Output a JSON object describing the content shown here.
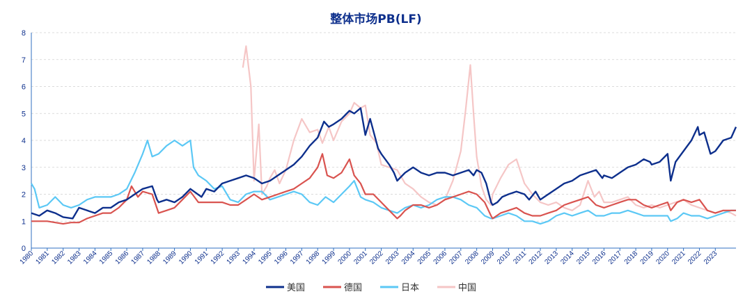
{
  "chart_data": {
    "type": "line",
    "title": "整体市场PB(LF)",
    "xlabel": "",
    "ylabel": "",
    "ylim": [
      0,
      8
    ],
    "yticks": [
      0,
      1,
      2,
      3,
      4,
      5,
      6,
      7,
      8
    ],
    "xlim": [
      1980,
      2024.3
    ],
    "xticks": [
      "1980",
      "1981",
      "1982",
      "1983",
      "1984",
      "1985",
      "1986",
      "1987",
      "1988",
      "1989",
      "1990",
      "1991",
      "1992",
      "1993",
      "1994",
      "1995",
      "1996",
      "1997",
      "1998",
      "1999",
      "2000",
      "2001",
      "2002",
      "2003",
      "2004",
      "2005",
      "2006",
      "2007",
      "2008",
      "2009",
      "2010",
      "2011",
      "2012",
      "2013",
      "2014",
      "2015",
      "2016",
      "2017",
      "2018",
      "2019",
      "2020",
      "2021",
      "2022",
      "2023"
    ],
    "grid": true,
    "legend_position": "bottom",
    "series": [
      {
        "name": "美国",
        "color": "#0d2f8c",
        "x": [
          1980,
          1980.5,
          1981,
          1981.5,
          1982,
          1982.6,
          1983,
          1983.5,
          1984,
          1984.5,
          1985,
          1985.5,
          1986,
          1986.5,
          1987,
          1987.6,
          1987.9,
          1988,
          1988.5,
          1989,
          1989.5,
          1990,
          1990.7,
          1991,
          1991.5,
          1992,
          1992.5,
          1993,
          1993.5,
          1994,
          1994.5,
          1995,
          1995.5,
          1996,
          1996.5,
          1997,
          1997.5,
          1998,
          1998.4,
          1998.7,
          1999,
          1999.5,
          2000,
          2000.3,
          2000.7,
          2001,
          2001.3,
          2001.8,
          2002,
          2002.5,
          2002.8,
          2003,
          2003.5,
          2004,
          2004.5,
          2005,
          2005.5,
          2006,
          2006.5,
          2007,
          2007.5,
          2007.8,
          2008,
          2008.3,
          2008.6,
          2008.9,
          2009,
          2009.3,
          2009.6,
          2010,
          2010.5,
          2011,
          2011.3,
          2011.7,
          2012,
          2012.5,
          2013,
          2013.5,
          2014,
          2014.5,
          2015,
          2015.5,
          2015.9,
          2016,
          2016.5,
          2017,
          2017.5,
          2018,
          2018.5,
          2018.9,
          2019,
          2019.5,
          2020,
          2020.2,
          2020.5,
          2021,
          2021.5,
          2021.9,
          2022,
          2022.3,
          2022.7,
          2023,
          2023.5,
          2024,
          2024.3
        ],
        "values": [
          1.3,
          1.2,
          1.4,
          1.3,
          1.15,
          1.1,
          1.5,
          1.4,
          1.3,
          1.5,
          1.5,
          1.7,
          1.8,
          2.0,
          2.2,
          2.3,
          1.8,
          1.7,
          1.8,
          1.7,
          1.9,
          2.2,
          1.9,
          2.2,
          2.1,
          2.4,
          2.5,
          2.6,
          2.7,
          2.6,
          2.4,
          2.5,
          2.7,
          2.9,
          3.1,
          3.4,
          3.8,
          4.1,
          4.7,
          4.5,
          4.6,
          4.8,
          5.1,
          5.0,
          5.2,
          4.2,
          4.8,
          3.7,
          3.5,
          3.1,
          2.8,
          2.5,
          2.8,
          3.0,
          2.8,
          2.7,
          2.8,
          2.8,
          2.7,
          2.8,
          2.9,
          2.7,
          2.9,
          2.8,
          2.4,
          1.7,
          1.6,
          1.7,
          1.9,
          2.0,
          2.1,
          2.0,
          1.8,
          2.1,
          1.8,
          2.0,
          2.2,
          2.4,
          2.5,
          2.7,
          2.8,
          2.9,
          2.6,
          2.7,
          2.6,
          2.8,
          3.0,
          3.1,
          3.3,
          3.2,
          3.1,
          3.2,
          3.5,
          2.5,
          3.2,
          3.6,
          4.0,
          4.5,
          4.2,
          4.3,
          3.5,
          3.6,
          4.0,
          4.1,
          4.5
        ]
      },
      {
        "name": "德国",
        "color": "#d9534f",
        "x": [
          1980,
          1980.5,
          1981,
          1981.5,
          1982,
          1982.5,
          1983,
          1983.5,
          1984,
          1984.5,
          1985,
          1985.5,
          1986,
          1986.3,
          1986.7,
          1987,
          1987.6,
          1988,
          1988.5,
          1989,
          1989.5,
          1990,
          1990.5,
          1991,
          1991.5,
          1992,
          1992.5,
          1993,
          1993.5,
          1994,
          1994.5,
          1995,
          1995.5,
          1996,
          1996.5,
          1997,
          1997.5,
          1998,
          1998.3,
          1998.6,
          1999,
          1999.5,
          2000,
          2000.3,
          2000.7,
          2001,
          2001.5,
          2002,
          2002.5,
          2003,
          2003.2,
          2003.5,
          2004,
          2004.5,
          2005,
          2005.5,
          2006,
          2006.5,
          2007,
          2007.5,
          2008,
          2008.5,
          2008.9,
          2009,
          2009.5,
          2010,
          2010.5,
          2011,
          2011.5,
          2012,
          2012.5,
          2013,
          2013.5,
          2014,
          2014.5,
          2015,
          2015.5,
          2016,
          2016.5,
          2017,
          2017.5,
          2018,
          2018.5,
          2019,
          2019.5,
          2020,
          2020.2,
          2020.6,
          2021,
          2021.5,
          2022,
          2022.5,
          2023,
          2023.5,
          2024,
          2024.3
        ],
        "values": [
          1.0,
          1.0,
          1.0,
          0.95,
          0.9,
          0.95,
          0.95,
          1.1,
          1.2,
          1.3,
          1.3,
          1.5,
          1.8,
          2.3,
          1.9,
          2.1,
          2.0,
          1.3,
          1.4,
          1.5,
          1.8,
          2.1,
          1.7,
          1.7,
          1.7,
          1.7,
          1.6,
          1.6,
          1.8,
          2.0,
          1.8,
          1.9,
          2.0,
          2.1,
          2.2,
          2.4,
          2.6,
          3.0,
          3.5,
          2.7,
          2.6,
          2.8,
          3.3,
          2.7,
          2.4,
          2.0,
          2.0,
          1.7,
          1.4,
          1.1,
          1.2,
          1.4,
          1.6,
          1.6,
          1.5,
          1.6,
          1.8,
          1.9,
          2.0,
          2.1,
          2.0,
          1.7,
          1.2,
          1.1,
          1.3,
          1.4,
          1.5,
          1.3,
          1.2,
          1.2,
          1.3,
          1.4,
          1.6,
          1.7,
          1.8,
          1.9,
          1.6,
          1.5,
          1.6,
          1.7,
          1.8,
          1.8,
          1.6,
          1.5,
          1.6,
          1.7,
          1.4,
          1.7,
          1.8,
          1.7,
          1.8,
          1.4,
          1.3,
          1.4,
          1.4,
          1.4
        ]
      },
      {
        "name": "日本",
        "color": "#5bc8f5",
        "x": [
          1980,
          1980.2,
          1980.5,
          1981,
          1981.5,
          1982,
          1982.5,
          1983,
          1983.5,
          1984,
          1984.5,
          1985,
          1985.5,
          1986,
          1986.5,
          1987,
          1987.3,
          1987.6,
          1988,
          1988.5,
          1989,
          1989.5,
          1990,
          1990.2,
          1990.5,
          1991,
          1991.5,
          1992,
          1992.5,
          1993,
          1993.5,
          1994,
          1994.5,
          1995,
          1995.5,
          1996,
          1996.5,
          1997,
          1997.5,
          1998,
          1998.5,
          1999,
          1999.5,
          2000,
          2000.3,
          2000.7,
          2001,
          2001.5,
          2002,
          2002.5,
          2003,
          2003.5,
          2004,
          2004.5,
          2005,
          2005.5,
          2006,
          2006.5,
          2007,
          2007.5,
          2008,
          2008.5,
          2008.9,
          2009,
          2009.5,
          2010,
          2010.5,
          2011,
          2011.5,
          2012,
          2012.5,
          2013,
          2013.5,
          2014,
          2014.5,
          2015,
          2015.5,
          2016,
          2016.5,
          2017,
          2017.5,
          2018,
          2018.5,
          2019,
          2019.5,
          2020,
          2020.2,
          2020.6,
          2021,
          2021.5,
          2022,
          2022.5,
          2023,
          2023.5,
          2024,
          2024.3
        ],
        "values": [
          2.4,
          2.2,
          1.5,
          1.6,
          1.9,
          1.6,
          1.5,
          1.6,
          1.8,
          1.9,
          1.9,
          1.9,
          2.0,
          2.2,
          2.8,
          3.5,
          4.0,
          3.4,
          3.5,
          3.8,
          4.0,
          3.8,
          4.0,
          3.0,
          2.7,
          2.5,
          2.2,
          2.3,
          1.8,
          1.7,
          2.0,
          2.1,
          2.1,
          1.8,
          1.9,
          2.0,
          2.1,
          2.0,
          1.7,
          1.6,
          1.9,
          1.7,
          2.0,
          2.3,
          2.5,
          1.9,
          1.8,
          1.7,
          1.5,
          1.4,
          1.3,
          1.5,
          1.6,
          1.5,
          1.6,
          1.8,
          1.9,
          1.9,
          1.8,
          1.6,
          1.5,
          1.2,
          1.1,
          1.1,
          1.2,
          1.3,
          1.2,
          1.0,
          1.0,
          0.9,
          1.0,
          1.2,
          1.3,
          1.2,
          1.3,
          1.4,
          1.2,
          1.2,
          1.3,
          1.3,
          1.4,
          1.3,
          1.2,
          1.2,
          1.2,
          1.2,
          1.0,
          1.1,
          1.3,
          1.2,
          1.2,
          1.1,
          1.2,
          1.3,
          1.4,
          1.4
        ]
      },
      {
        "name": "中国",
        "color": "#f5c6c6",
        "x": [
          1993.3,
          1993.5,
          1993.8,
          1994,
          1994.3,
          1994.5,
          1994.8,
          1995,
          1995.3,
          1995.6,
          1996,
          1996.5,
          1997,
          1997.5,
          1998,
          1998.3,
          1998.7,
          1999,
          1999.5,
          2000,
          2000.3,
          2000.7,
          2001,
          2001.3,
          2001.7,
          2002,
          2002.5,
          2003,
          2003.5,
          2004,
          2004.5,
          2005,
          2005.5,
          2006,
          2006.5,
          2007,
          2007.3,
          2007.6,
          2007.8,
          2008,
          2008.3,
          2008.6,
          2008.9,
          2009,
          2009.5,
          2010,
          2010.5,
          2011,
          2011.5,
          2012,
          2012.5,
          2013,
          2013.5,
          2014,
          2014.5,
          2015,
          2015.4,
          2015.7,
          2016,
          2016.5,
          2017,
          2017.5,
          2018,
          2018.5,
          2019,
          2019.5,
          2020,
          2020.5,
          2021,
          2021.5,
          2022,
          2022.5,
          2023,
          2023.5,
          2024,
          2024.3
        ],
        "values": [
          6.7,
          7.5,
          6.0,
          2.5,
          4.6,
          2.0,
          2.3,
          2.6,
          2.9,
          2.4,
          2.9,
          4.0,
          4.8,
          4.3,
          4.4,
          3.9,
          4.5,
          4.0,
          4.7,
          5.0,
          5.4,
          5.2,
          5.3,
          4.2,
          3.9,
          3.1,
          3.0,
          2.9,
          2.4,
          2.2,
          1.9,
          1.7,
          1.6,
          1.8,
          2.5,
          3.6,
          5.1,
          6.8,
          5.0,
          3.4,
          2.3,
          1.8,
          1.6,
          2.0,
          2.6,
          3.1,
          3.3,
          2.4,
          2.0,
          1.7,
          1.6,
          1.7,
          1.5,
          1.4,
          1.6,
          2.5,
          1.9,
          2.1,
          1.7,
          1.7,
          1.8,
          1.9,
          1.6,
          1.5,
          1.6,
          1.5,
          1.6,
          1.7,
          1.8,
          1.6,
          1.5,
          1.4,
          1.3,
          1.4,
          1.3,
          1.2
        ]
      }
    ]
  }
}
